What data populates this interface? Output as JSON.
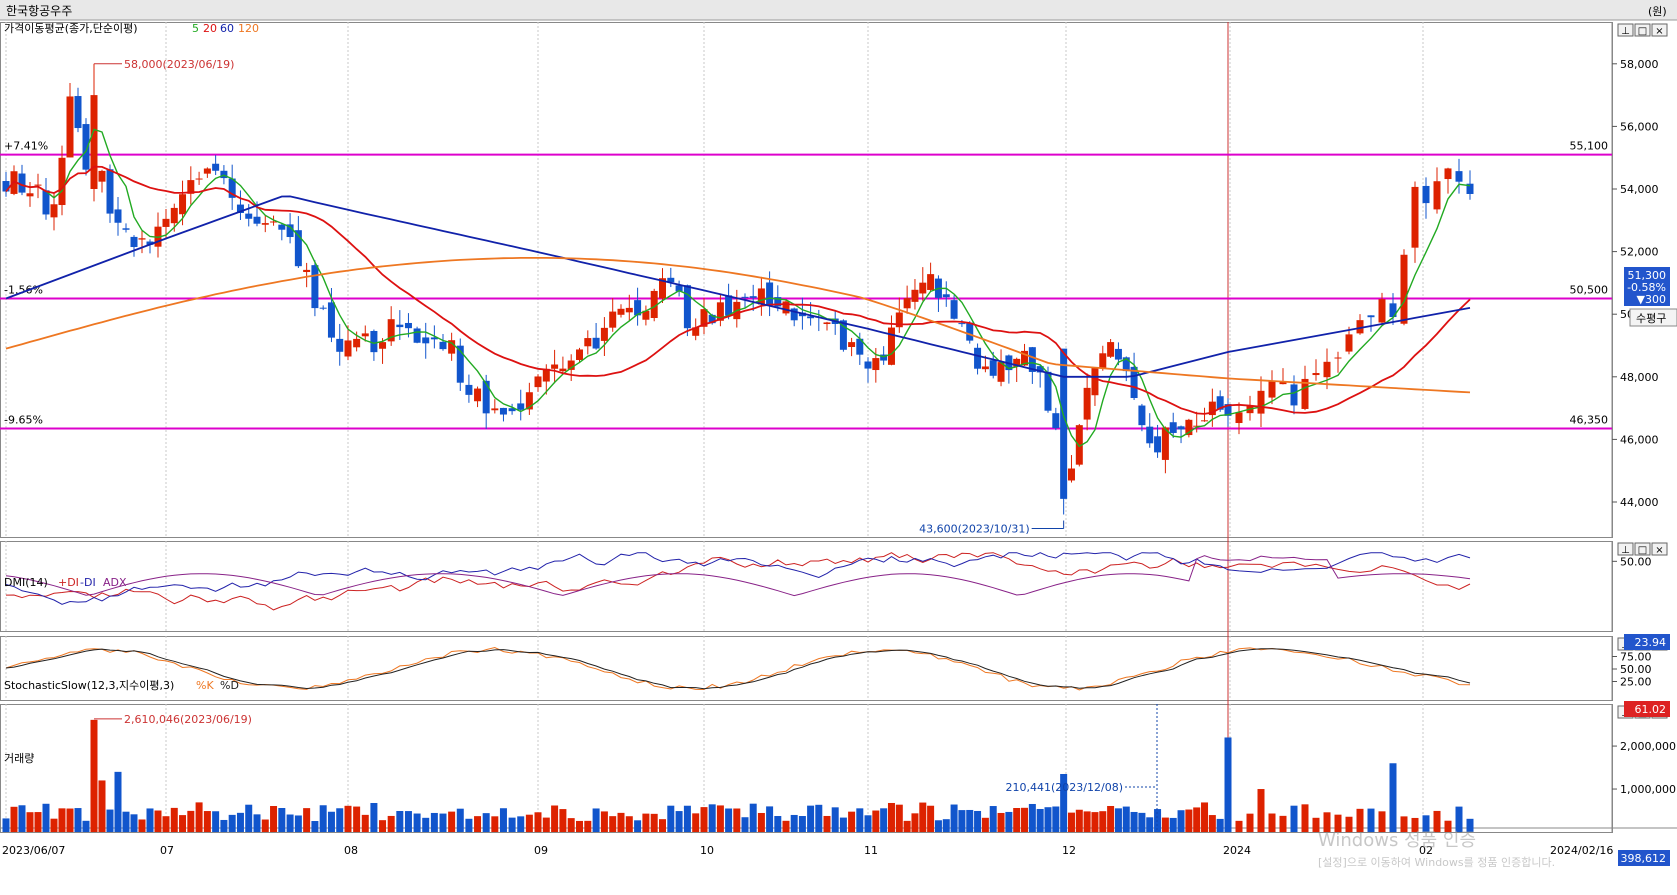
{
  "window": {
    "title": "한국항공우주",
    "unit_label": "(원)"
  },
  "price_panel": {
    "indicator_label": "가격이동평균(종가,단순이평)",
    "ma_periods": [
      "5",
      "20",
      "60",
      "120"
    ],
    "ma_colors": {
      "5": "#22aa22",
      "20": "#dd1111",
      "60": "#1122aa",
      "120": "#ee7722"
    },
    "up_color": "#dd2200",
    "down_color": "#1155cc",
    "high_annotation": "58,000(2023/06/19)",
    "low_annotation": "43,600(2023/10/31)",
    "hlines": [
      {
        "price": 55100,
        "label_left": "+7.41%",
        "label_right": "55,100"
      },
      {
        "price": 50500,
        "label_left": "-1.56%",
        "label_right": "50,500"
      },
      {
        "price": 46350,
        "label_left": "-9.65%",
        "label_right": "46,350"
      }
    ],
    "hline_color": "#dd00cc",
    "y_ticks": [
      "44,000",
      "46,000",
      "48,000",
      "50,000",
      "52,000",
      "54,000",
      "56,000",
      "58,000"
    ],
    "current_price": "51,300",
    "change_pct": "-0.58%",
    "change_abs": "▼300",
    "side_tab": "수평구"
  },
  "dmi_panel": {
    "label": "DMI(14)",
    "series_labels": [
      "+DI",
      "-DI",
      "ADX"
    ],
    "series_colors": [
      "#cc2222",
      "#2222aa",
      "#882288"
    ],
    "y_tick": "50.00",
    "current_value": "23.94"
  },
  "stoch_panel": {
    "label": "StochasticSlow(12,3,지수이평,3)",
    "series_labels": [
      "%K",
      "%D"
    ],
    "series_colors": [
      "#ee7722",
      "#222222"
    ],
    "y_ticks": [
      "75.00",
      "50.00",
      "25.00"
    ],
    "current_value": "61.02"
  },
  "volume_panel": {
    "label": "거래량",
    "max_annotation": "2,610,046(2023/06/19)",
    "marker_annotation": "210,441(2023/12/08)",
    "y_ticks": [
      "1,000,000",
      "2,000,000"
    ],
    "current_value": "398,612"
  },
  "x_axis": {
    "labels": [
      "2023/06/07",
      "07",
      "08",
      "09",
      "10",
      "11",
      "12",
      "2024",
      "02",
      "2024/02/16"
    ]
  },
  "panel_buttons": [
    "⊥",
    "□",
    "×"
  ],
  "watermark": {
    "line1": "Windows 정품 인증",
    "line2": "[설정]으로 이동하여 Windows를 정품 인증합니다."
  }
}
